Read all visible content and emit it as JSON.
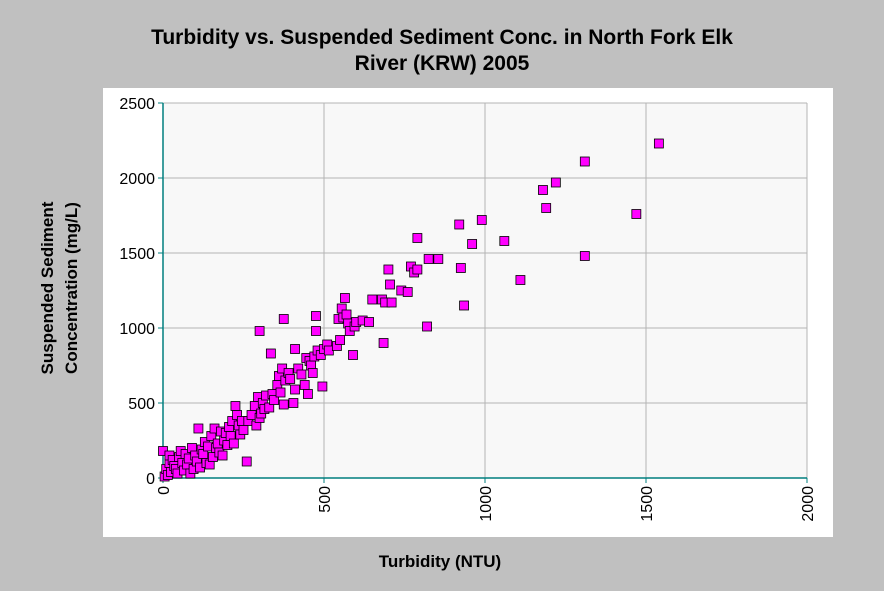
{
  "chart_data": {
    "type": "scatter",
    "title_lines": [
      "Turbidity vs. Suspended Sediment Conc. in North Fork Elk",
      "River (KRW) 2005"
    ],
    "xlabel": "Turbidity (NTU)",
    "ylabel_lines": [
      "Suspended Sediment",
      "Concentration (mg/L)"
    ],
    "xlim": [
      0,
      2000
    ],
    "ylim": [
      0,
      2500
    ],
    "x_ticks": [
      "0",
      "500",
      "1000",
      "1500",
      "2000"
    ],
    "y_ticks": [
      "0",
      "500",
      "1000",
      "1500",
      "2000",
      "2500"
    ],
    "grid": true,
    "marker_color": "#ff00ff",
    "marker_edge": "#000000",
    "series": [
      {
        "points": [
          [
            0,
            180
          ],
          [
            5,
            10
          ],
          [
            10,
            60
          ],
          [
            15,
            20
          ],
          [
            20,
            100
          ],
          [
            20,
            150
          ],
          [
            25,
            40
          ],
          [
            30,
            120
          ],
          [
            35,
            80
          ],
          [
            40,
            60
          ],
          [
            45,
            30
          ],
          [
            50,
            140
          ],
          [
            55,
            180
          ],
          [
            60,
            100
          ],
          [
            65,
            50
          ],
          [
            70,
            160
          ],
          [
            75,
            90
          ],
          [
            80,
            130
          ],
          [
            85,
            30
          ],
          [
            90,
            200
          ],
          [
            95,
            60
          ],
          [
            100,
            150
          ],
          [
            105,
            110
          ],
          [
            110,
            330
          ],
          [
            115,
            70
          ],
          [
            120,
            190
          ],
          [
            125,
            160
          ],
          [
            130,
            240
          ],
          [
            135,
            100
          ],
          [
            140,
            210
          ],
          [
            145,
            90
          ],
          [
            150,
            280
          ],
          [
            155,
            140
          ],
          [
            160,
            330
          ],
          [
            165,
            200
          ],
          [
            170,
            230
          ],
          [
            175,
            170
          ],
          [
            180,
            310
          ],
          [
            185,
            150
          ],
          [
            190,
            250
          ],
          [
            195,
            300
          ],
          [
            200,
            220
          ],
          [
            205,
            340
          ],
          [
            210,
            280
          ],
          [
            215,
            380
          ],
          [
            220,
            230
          ],
          [
            225,
            480
          ],
          [
            230,
            420
          ],
          [
            235,
            350
          ],
          [
            240,
            290
          ],
          [
            245,
            380
          ],
          [
            250,
            320
          ],
          [
            260,
            110
          ],
          [
            265,
            380
          ],
          [
            275,
            420
          ],
          [
            285,
            480
          ],
          [
            290,
            350
          ],
          [
            295,
            540
          ],
          [
            300,
            400
          ],
          [
            300,
            980
          ],
          [
            305,
            430
          ],
          [
            310,
            500
          ],
          [
            315,
            460
          ],
          [
            320,
            550
          ],
          [
            330,
            470
          ],
          [
            335,
            830
          ],
          [
            340,
            560
          ],
          [
            345,
            520
          ],
          [
            355,
            620
          ],
          [
            360,
            680
          ],
          [
            365,
            570
          ],
          [
            370,
            730
          ],
          [
            375,
            490
          ],
          [
            375,
            1060
          ],
          [
            380,
            650
          ],
          [
            390,
            700
          ],
          [
            395,
            660
          ],
          [
            405,
            500
          ],
          [
            410,
            590
          ],
          [
            410,
            860
          ],
          [
            420,
            730
          ],
          [
            430,
            690
          ],
          [
            440,
            620
          ],
          [
            445,
            800
          ],
          [
            450,
            560
          ],
          [
            455,
            780
          ],
          [
            460,
            750
          ],
          [
            465,
            700
          ],
          [
            470,
            810
          ],
          [
            475,
            980
          ],
          [
            475,
            1080
          ],
          [
            480,
            850
          ],
          [
            490,
            820
          ],
          [
            495,
            610
          ],
          [
            500,
            860
          ],
          [
            510,
            890
          ],
          [
            515,
            850
          ],
          [
            540,
            880
          ],
          [
            545,
            1060
          ],
          [
            550,
            920
          ],
          [
            555,
            1130
          ],
          [
            560,
            1070
          ],
          [
            565,
            1200
          ],
          [
            570,
            1090
          ],
          [
            575,
            1030
          ],
          [
            580,
            980
          ],
          [
            590,
            820
          ],
          [
            595,
            1010
          ],
          [
            600,
            1040
          ],
          [
            620,
            1050
          ],
          [
            640,
            1040
          ],
          [
            650,
            1190
          ],
          [
            680,
            1190
          ],
          [
            685,
            900
          ],
          [
            690,
            1170
          ],
          [
            700,
            1390
          ],
          [
            705,
            1290
          ],
          [
            710,
            1170
          ],
          [
            740,
            1250
          ],
          [
            760,
            1240
          ],
          [
            770,
            1410
          ],
          [
            780,
            1370
          ],
          [
            790,
            1600
          ],
          [
            790,
            1390
          ],
          [
            820,
            1010
          ],
          [
            825,
            1460
          ],
          [
            855,
            1460
          ],
          [
            920,
            1690
          ],
          [
            925,
            1400
          ],
          [
            935,
            1150
          ],
          [
            960,
            1560
          ],
          [
            990,
            1720
          ],
          [
            1060,
            1580
          ],
          [
            1110,
            1320
          ],
          [
            1180,
            1920
          ],
          [
            1190,
            1800
          ],
          [
            1220,
            1970
          ],
          [
            1310,
            2110
          ],
          [
            1310,
            1480
          ],
          [
            1470,
            1760
          ],
          [
            1540,
            2230
          ]
        ]
      }
    ]
  }
}
